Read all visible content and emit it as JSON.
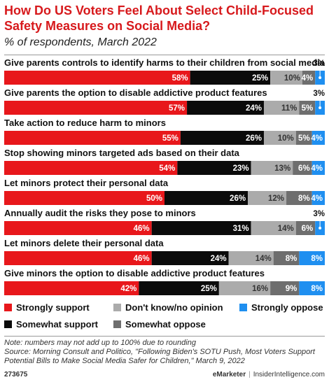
{
  "title": "How Do US Voters Feel About Select Child-Focused Safety Measures on Social Media?",
  "subtitle": "% of respondents, March 2022",
  "chart_data": {
    "type": "bar",
    "stacked": true,
    "orientation": "horizontal",
    "categories": [
      "Give parents controls to identify harms to their children from social media",
      "Give parents the option to disable addictive product features",
      "Take action to reduce harm to minors",
      "Stop showing minors targeted ads based on their data",
      "Let minors protect their personal data",
      "Annually audit the risks they pose to minors",
      "Let minors delete their personal data",
      "Give minors the option to disable addictive product features"
    ],
    "series": [
      {
        "name": "Strongly support",
        "color": "#e8171b",
        "values": [
          58,
          57,
          55,
          54,
          50,
          46,
          46,
          42
        ]
      },
      {
        "name": "Somewhat support",
        "color": "#0b0b0b",
        "values": [
          25,
          24,
          26,
          23,
          26,
          31,
          24,
          25
        ]
      },
      {
        "name": "Don't know/no opinion",
        "color": "#ababab",
        "values": [
          10,
          11,
          10,
          13,
          12,
          14,
          14,
          16
        ]
      },
      {
        "name": "Somewhat oppose",
        "color": "#6e6e6e",
        "values": [
          4,
          5,
          5,
          6,
          8,
          6,
          8,
          9
        ]
      },
      {
        "name": "Strongly oppose",
        "color": "#1f8ff0",
        "values": [
          3,
          3,
          4,
          4,
          4,
          3,
          8,
          8
        ]
      }
    ],
    "legend_position": "bottom",
    "xlim": [
      0,
      100
    ]
  },
  "notes": {
    "note": "Note: numbers may not add up to 100% due to rounding",
    "source": "Source: Morning Consult and Politico, \"Following Biden's SOTU Push, Most Voters Support Potential Bills to Make Social Media Safer for Children,\" March 9, 2022"
  },
  "footer": {
    "chart_id": "273675",
    "brand": "eMarketer",
    "separator": "|",
    "site": "InsiderIntelligence.com"
  }
}
